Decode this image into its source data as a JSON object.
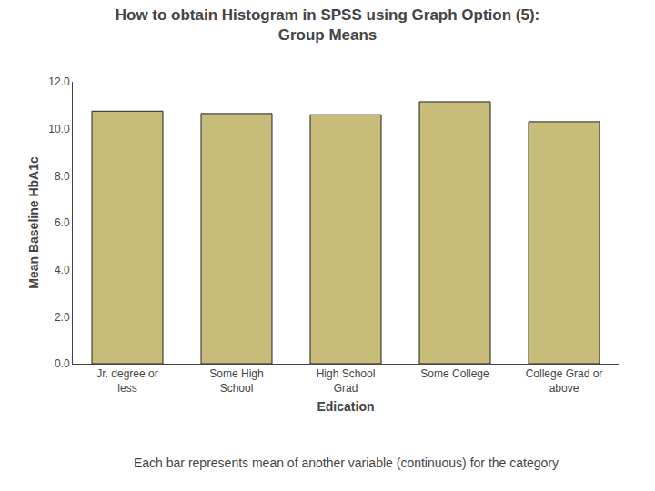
{
  "chart_data": {
    "type": "bar",
    "title": "How to obtain Histogram in SPSS using Graph Option (5):\nGroup Means",
    "categories": [
      "Jr. degree or\nless",
      "Some High\nSchool",
      "High School\nGrad",
      "Some College",
      "College Grad or\nabove"
    ],
    "values": [
      10.75,
      10.65,
      10.6,
      11.15,
      10.3
    ],
    "color": "#C8BC7A",
    "xlabel": "Edication",
    "ylabel": "Mean Baseline HbA1c",
    "ylim": [
      0,
      12.0
    ],
    "yticks": [
      {
        "value": 0.0,
        "label": "0.0"
      },
      {
        "value": 2.0,
        "label": "2.0"
      },
      {
        "value": 4.0,
        "label": "4.0"
      },
      {
        "value": 6.0,
        "label": "6.0"
      },
      {
        "value": 8.0,
        "label": "8.0"
      },
      {
        "value": 10.0,
        "label": "10.0"
      },
      {
        "value": 12.0,
        "label": "12.0"
      }
    ],
    "grid": false,
    "annotations": [
      "Each bar represents mean of another variable (continuous) for the category"
    ]
  }
}
